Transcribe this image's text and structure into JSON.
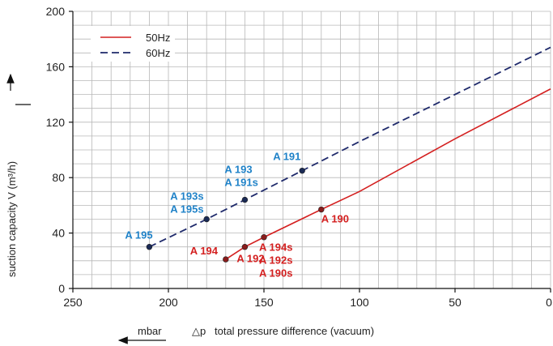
{
  "chart_data": {
    "type": "line",
    "xlabel": "total pressure difference (vacuum)",
    "xlabel_symbol": "△p",
    "xunit": "mbar",
    "ylabel": "suction capacity V (m³/h)",
    "xlim": [
      250,
      0
    ],
    "ylim": [
      0,
      200
    ],
    "x_ticks": [
      250,
      200,
      150,
      100,
      50,
      0
    ],
    "y_ticks": [
      0,
      40,
      80,
      120,
      160,
      200
    ],
    "grid": true,
    "legend_placement": "top-left",
    "series": [
      {
        "name": "50Hz",
        "style": "solid",
        "color": "#d42020",
        "points": [
          [
            170,
            21
          ],
          [
            160,
            30
          ],
          [
            150,
            37
          ],
          [
            120,
            57
          ],
          [
            100,
            70
          ],
          [
            50,
            108
          ],
          [
            0,
            144
          ]
        ]
      },
      {
        "name": "60Hz",
        "style": "dashed",
        "color": "#1f2a6b",
        "points": [
          [
            210,
            30
          ],
          [
            180,
            50
          ],
          [
            160,
            64
          ],
          [
            130,
            85
          ],
          [
            100,
            106
          ],
          [
            50,
            140
          ],
          [
            0,
            174
          ]
        ]
      }
    ],
    "annotations": [
      {
        "series": "50Hz",
        "x": 170,
        "y": 21,
        "labels": [
          "A 194"
        ],
        "color": "#d42020"
      },
      {
        "series": "50Hz",
        "x": 160,
        "y": 30,
        "labels": [
          "A 192"
        ],
        "color": "#d42020"
      },
      {
        "series": "50Hz",
        "x": 150,
        "y": 37,
        "labels": [
          "A 194s",
          "A 192s",
          "A 190s"
        ],
        "color": "#d42020"
      },
      {
        "series": "50Hz",
        "x": 120,
        "y": 57,
        "labels": [
          "A 190"
        ],
        "color": "#d42020"
      },
      {
        "series": "60Hz",
        "x": 210,
        "y": 30,
        "labels": [
          "A 195"
        ],
        "color": "#1f82c8"
      },
      {
        "series": "60Hz",
        "x": 180,
        "y": 50,
        "labels": [
          "A 193s",
          "A 195s"
        ],
        "color": "#1f82c8"
      },
      {
        "series": "60Hz",
        "x": 160,
        "y": 64,
        "labels": [
          "A 193",
          "A 191s"
        ],
        "color": "#1f82c8"
      },
      {
        "series": "60Hz",
        "x": 130,
        "y": 85,
        "labels": [
          "A 191"
        ],
        "color": "#1f82c8"
      }
    ],
    "marker_color": "#1a2a55"
  }
}
